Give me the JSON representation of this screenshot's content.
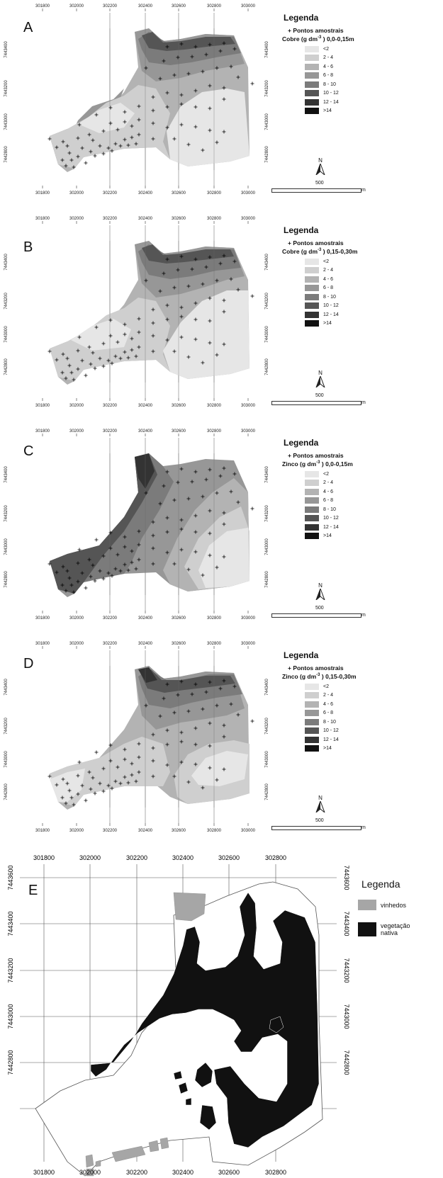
{
  "panels": [
    {
      "letter": "A",
      "legend_title": "Legenda",
      "points_label": "+ Pontos amostrais",
      "variable_prefix": "Cobre (g dm",
      "variable_sup": "-3",
      "variable_suffix": " ) 0,0-0,15m"
    },
    {
      "letter": "B",
      "legend_title": "Legenda",
      "points_label": "+ Pontos amostrais",
      "variable_prefix": "Cobre (g dm",
      "variable_sup": "-3",
      "variable_suffix": " ) 0,15-0,30m"
    },
    {
      "letter": "C",
      "legend_title": "Legenda",
      "points_label": "+ Pontos amostrais",
      "variable_prefix": "Zinco (g dm",
      "variable_sup": "-3",
      "variable_suffix": " ) 0,0-0,15m"
    },
    {
      "letter": "D",
      "legend_title": "Legenda",
      "points_label": "+ Pontos amostrais",
      "variable_prefix": "Zinco (g dm",
      "variable_sup": "-3",
      "variable_suffix": " ) 0,15-0,30m"
    }
  ],
  "classes": [
    {
      "label": "<2",
      "color": "#e6e6e6"
    },
    {
      "label": "2 - 4",
      "color": "#cfcfcf"
    },
    {
      "label": "4 - 6",
      "color": "#b3b3b3"
    },
    {
      "label": "6 - 8",
      "color": "#979797"
    },
    {
      "label": "8 - 10",
      "color": "#7b7b7b"
    },
    {
      "label": "10 - 12",
      "color": "#555555"
    },
    {
      "label": "12 - 14",
      "color": "#333333"
    },
    {
      "label": ">14",
      "color": "#111111"
    }
  ],
  "x_ticks": [
    "301800",
    "302000",
    "302200",
    "302400",
    "302600",
    "302800",
    "303000"
  ],
  "y_ticks": [
    "7443400",
    "7443200",
    "7443000",
    "7442800"
  ],
  "y_ticks_e": [
    "7443600",
    "7443400",
    "7443200",
    "7443000",
    "7442800"
  ],
  "x_ticks_e": [
    "301800",
    "302000",
    "302200",
    "302400",
    "302600",
    "302800"
  ],
  "north_label": "N",
  "scale_label": "500",
  "scale_unit": "m",
  "panel_e": {
    "letter": "E",
    "legend_title": "Legenda",
    "items": [
      {
        "label": "vinhedos",
        "color": "#a6a6a6"
      },
      {
        "label": "vegetação nativa",
        "color": "#111111"
      }
    ]
  }
}
